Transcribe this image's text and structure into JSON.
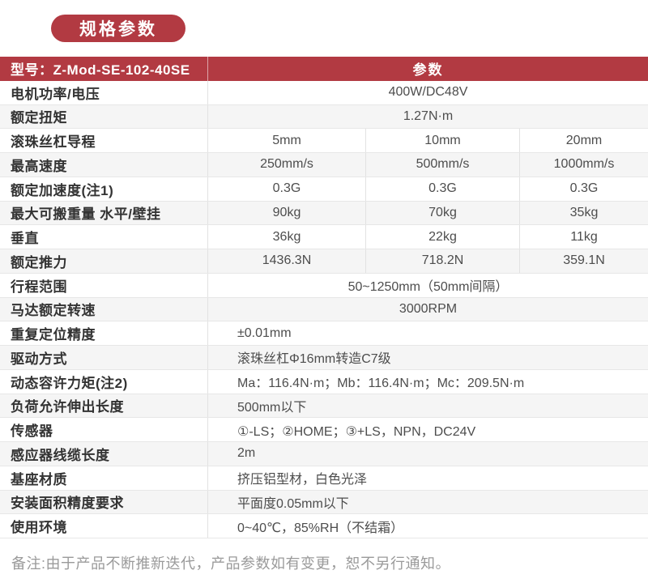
{
  "badge": {
    "label": "规格参数"
  },
  "table": {
    "header": {
      "model_label": "型号：Z-Mod-SE-102-40SE",
      "param_label": "参数"
    },
    "rows": [
      {
        "label": "电机功率/电压",
        "value": "400W/DC48V"
      },
      {
        "label": "额定扭矩",
        "value": "1.27N·m"
      },
      {
        "label": "滚珠丝杠导程",
        "values": [
          "5mm",
          "10mm",
          "20mm"
        ]
      },
      {
        "label": "最高速度",
        "values": [
          "250mm/s",
          "500mm/s",
          "1000mm/s"
        ]
      },
      {
        "label": "额定加速度(注1)",
        "values": [
          "0.3G",
          "0.3G",
          "0.3G"
        ]
      },
      {
        "label": "最大可搬重量 水平/壁挂",
        "values": [
          "90kg",
          "70kg",
          "35kg"
        ]
      },
      {
        "label": "垂直",
        "values": [
          "36kg",
          "22kg",
          "11kg"
        ]
      },
      {
        "label": "额定推力",
        "values": [
          "1436.3N",
          "718.2N",
          "359.1N"
        ]
      },
      {
        "label": "行程范围",
        "value": "50~1250mm（50mm间隔）"
      },
      {
        "label": "马达额定转速",
        "value": "3000RPM"
      },
      {
        "label": "重复定位精度",
        "value": "±0.01mm"
      },
      {
        "label": "驱动方式",
        "value": "滚珠丝杠Φ16mm转造C7级"
      },
      {
        "label": "动态容许力矩(注2)",
        "value": "Ma：116.4N·m；Mb：116.4N·m；Mc：209.5N·m"
      },
      {
        "label": "负荷允许伸出长度",
        "value": "500mm以下"
      },
      {
        "label": "传感器",
        "value": "①-LS；②HOME；③+LS，NPN，DC24V"
      },
      {
        "label": "感应器线缆长度",
        "value": "2m"
      },
      {
        "label": "基座材质",
        "value": "挤压铝型材，白色光泽"
      },
      {
        "label": "安装面积精度要求",
        "value": "平面度0.05mm以下"
      },
      {
        "label": "使用环境",
        "value": "0~40℃，85%RH（不结霜）"
      }
    ]
  },
  "footer": {
    "note": "备注:由于产品不断推新迭代，产品参数如有变更，恕不另行通知。"
  },
  "colors": {
    "accent_red": "#b23a42",
    "row_alt_bg": "#f5f5f5",
    "border": "#e2e2e2",
    "label_text": "#333333",
    "value_text": "#4d4d4d",
    "note_text": "#9a9a9a"
  }
}
